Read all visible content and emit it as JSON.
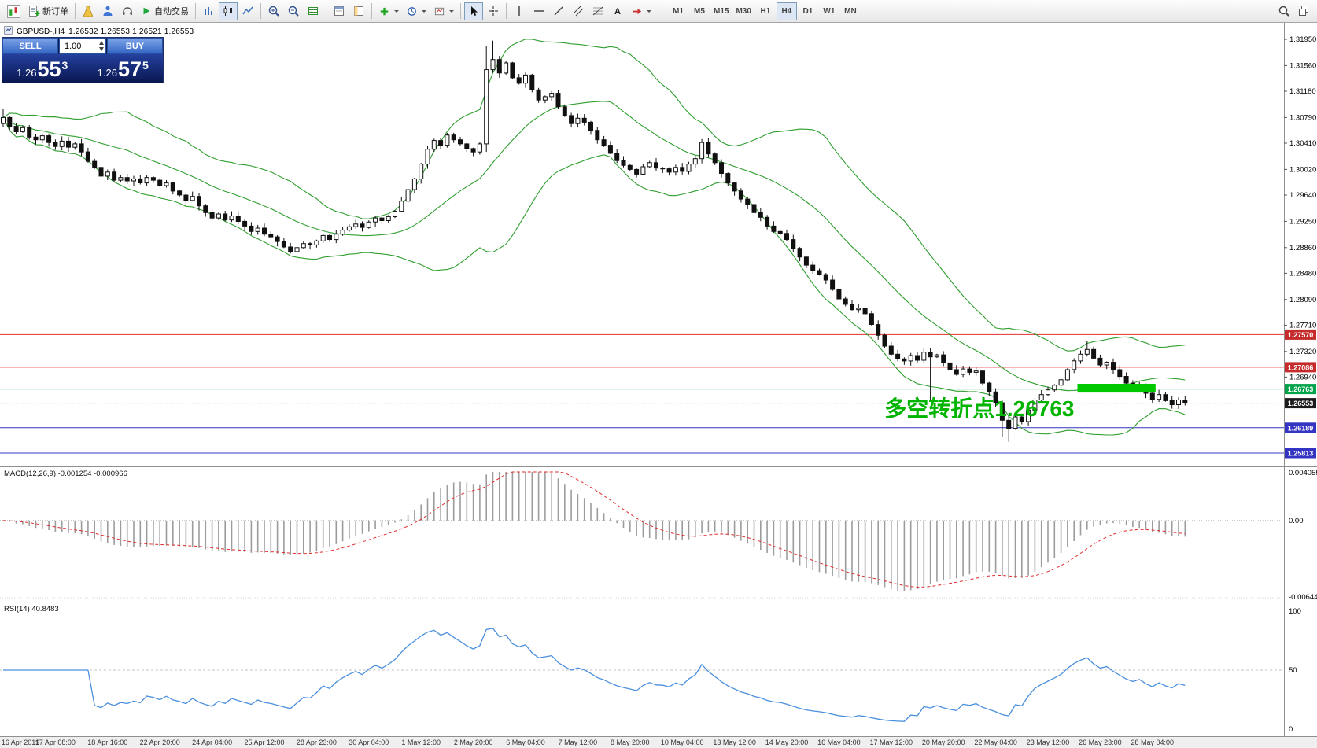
{
  "toolbar": {
    "new_order_label": "新订单",
    "autotrading_label": "自动交易",
    "timeframes": [
      "M1",
      "M5",
      "M15",
      "M30",
      "H1",
      "H4",
      "D1",
      "W1",
      "MN"
    ],
    "active_timeframe": "H4"
  },
  "symbol_bar": {
    "symbol": "GBPUSD-,H4",
    "ohlc": "1.26532 1.26553 1.26521 1.26553"
  },
  "trade_widget": {
    "sell_label": "SELL",
    "buy_label": "BUY",
    "volume": "1.00",
    "bid": {
      "prefix": "1.26",
      "big": "55",
      "sup": "3"
    },
    "ask": {
      "prefix": "1.26",
      "big": "57",
      "sup": "5"
    }
  },
  "chart_data": {
    "type": "candlestick",
    "symbol": "GBPUSD-",
    "timeframe": "H4",
    "price_axis_ticks": [
      "1.31950",
      "1.31560",
      "1.31180",
      "1.30790",
      "1.30410",
      "1.30020",
      "1.29640",
      "1.29250",
      "1.28860",
      "1.28480",
      "1.28090",
      "1.27710",
      "1.27320",
      "1.26940"
    ],
    "levels": [
      {
        "label": "1.27570",
        "price": 1.2757,
        "badge": true,
        "badge_color": "#c52b2b",
        "line_color": "#e03030",
        "line_style": "solid"
      },
      {
        "label": "1.27086",
        "price": 1.27086,
        "badge": true,
        "badge_color": "#c52b2b",
        "line_color": "#e03030",
        "line_style": "solid"
      },
      {
        "label": "1.26763",
        "price": 1.26763,
        "badge": true,
        "badge_color": "#00a24a",
        "line_color": "#00b050",
        "line_style": "solid"
      },
      {
        "label": "1.26553",
        "price": 1.26553,
        "badge": true,
        "badge_color": "#1c1c1c",
        "line_color": "#9a9a9a",
        "line_style": "dotted"
      },
      {
        "label": "1.26189",
        "price": 1.26189,
        "badge": true,
        "badge_color": "#3434c2",
        "line_color": "#3434c2",
        "line_style": "solid"
      },
      {
        "label": "1.25813",
        "price": 1.25813,
        "badge": true,
        "badge_color": "#3434c2",
        "line_color": "#3434c2",
        "line_style": "solid"
      }
    ],
    "current_price": 1.26553,
    "first_open": 1.307,
    "closes": [
      1.3079,
      1.3066,
      1.3058,
      1.3064,
      1.305,
      1.3046,
      1.3052,
      1.3042,
      1.3036,
      1.3044,
      1.3035,
      1.304,
      1.3028,
      1.3014,
      1.3005,
      1.2992,
      1.2998,
      1.2986,
      1.299,
      1.2985,
      1.2988,
      1.2982,
      1.299,
      1.2986,
      1.2978,
      1.2982,
      1.297,
      1.2964,
      1.2956,
      1.2962,
      1.2948,
      1.2938,
      1.293,
      1.2936,
      1.2927,
      1.2933,
      1.2925,
      1.2918,
      1.291,
      1.2915,
      1.2906,
      1.2902,
      1.2895,
      1.2887,
      1.288,
      1.2886,
      1.2892,
      1.289,
      1.2896,
      1.2904,
      1.2898,
      1.2906,
      1.2912,
      1.2917,
      1.2921,
      1.2916,
      1.2924,
      1.293,
      1.2926,
      1.2932,
      1.294,
      1.2955,
      1.2972,
      1.2988,
      1.301,
      1.3032,
      1.3045,
      1.3038,
      1.3053,
      1.3046,
      1.304,
      1.3033,
      1.3028,
      1.304,
      1.315,
      1.3165,
      1.3145,
      1.316,
      1.3138,
      1.313,
      1.3142,
      1.312,
      1.3105,
      1.311,
      1.3115,
      1.3095,
      1.3082,
      1.307,
      1.3078,
      1.3072,
      1.306,
      1.3046,
      1.3038,
      1.3026,
      1.3015,
      1.3008,
      1.3002,
      1.2995,
      1.3006,
      1.3012,
      1.3004,
      1.3003,
      1.2998,
      1.3005,
      1.2999,
      1.301,
      1.3018,
      1.3042,
      1.3025,
      1.3012,
      1.2996,
      1.2982,
      1.297,
      1.2958,
      1.295,
      1.2938,
      1.2931,
      1.2918,
      1.291,
      1.2907,
      1.2898,
      1.2885,
      1.2872,
      1.286,
      1.2852,
      1.2846,
      1.2838,
      1.2824,
      1.281,
      1.2802,
      1.2794,
      1.2796,
      1.2788,
      1.2772,
      1.2756,
      1.274,
      1.2728,
      1.2721,
      1.2718,
      1.2726,
      1.2719,
      1.2731,
      1.2724,
      1.2727,
      1.2715,
      1.2705,
      1.2698,
      1.2706,
      1.2701,
      1.2703,
      1.2685,
      1.2672,
      1.2656,
      1.263,
      1.2618,
      1.2635,
      1.2628,
      1.2645,
      1.266,
      1.2668,
      1.2675,
      1.2682,
      1.269,
      1.2705,
      1.2718,
      1.2728,
      1.2735,
      1.2722,
      1.2712,
      1.2716,
      1.2705,
      1.2695,
      1.2685,
      1.2678,
      1.2682,
      1.267,
      1.2661,
      1.2668,
      1.2659,
      1.2653,
      1.266,
      1.26553
    ],
    "overrides": {
      "0": {
        "high": 1.3092
      },
      "74": {
        "low": 1.3028,
        "high": 1.3185
      },
      "75": {
        "high": 1.3193
      },
      "107": {
        "high": 1.3047
      },
      "142": {
        "low": 1.266
      },
      "153": {
        "low": 1.2605
      },
      "154": {
        "low": 1.2598
      },
      "166": {
        "high": 1.2747
      }
    },
    "time_labels": [
      "16 Apr 2019",
      "17 Apr 08:00",
      "18 Apr 16:00",
      "22 Apr 20:00",
      "24 Apr 04:00",
      "25 Apr 12:00",
      "28 Apr 23:00",
      "30 Apr 04:00",
      "1 May 12:00",
      "2 May 20:00",
      "6 May 04:00",
      "7 May 12:00",
      "8 May 20:00",
      "10 May 04:00",
      "13 May 12:00",
      "14 May 20:00",
      "16 May 04:00",
      "17 May 12:00",
      "20 May 20:00",
      "22 May 04:00",
      "23 May 12:00",
      "26 May 23:00",
      "28 May 04:00"
    ],
    "label_every": 8,
    "bollinger": {
      "period": 20,
      "deviation": 2,
      "color": "#2f9e2f"
    },
    "green_box": {
      "start_index": 165,
      "end_index": 176,
      "top": 1.2684,
      "bottom": 1.2671,
      "color": "#00c800"
    },
    "annotation": {
      "text": "多空转折点1.26763",
      "color": "#00b400",
      "font_size": 28,
      "end_index": 165,
      "baseline_price": 1.2636
    },
    "macd": {
      "label": "MACD(12,26,9) -0.001254 -0.000966",
      "axis": [
        "0.004055",
        "0.00",
        "-0.006442"
      ],
      "axis_max": 0.004055,
      "axis_min": -0.006442,
      "histogram_color": "#9c9c9c",
      "signal_color": "#e02e2e"
    },
    "rsi": {
      "label": "RSI(14) 40.8483",
      "period": 14,
      "axis": [
        "100",
        "50",
        "0"
      ],
      "color": "#4a8fdd"
    }
  }
}
